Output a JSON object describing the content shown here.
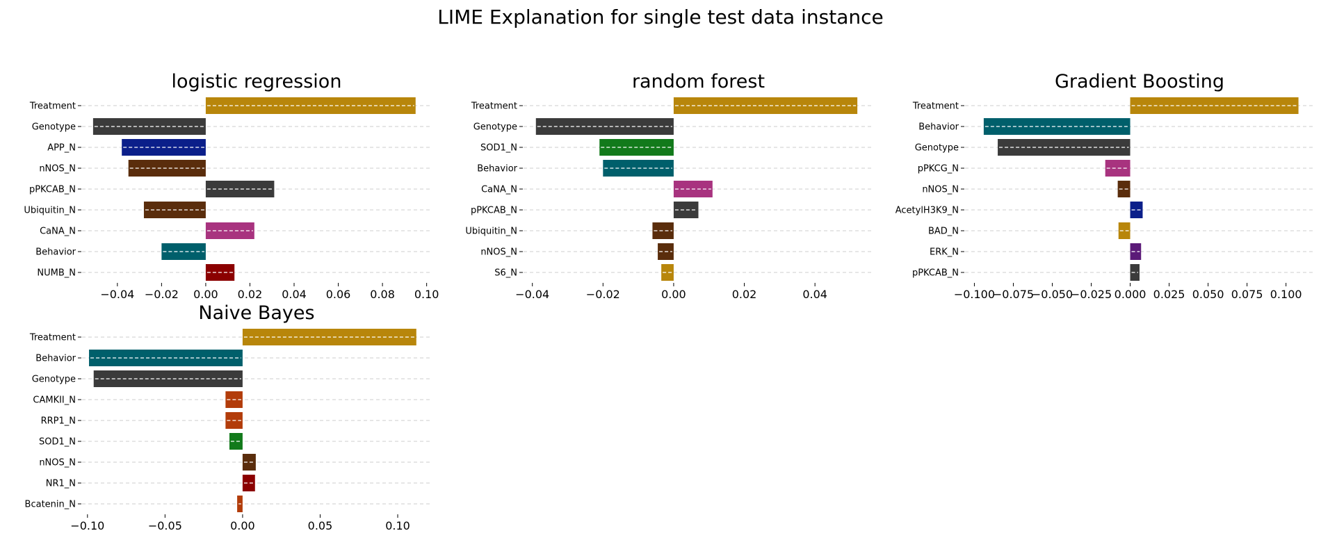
{
  "figure_title": "LIME Explanation for single test data instance",
  "colors": {
    "gold": "#b8860b",
    "dark_gray": "#3b3b3b",
    "navy": "#0b1f8a",
    "brown": "#5a2d0c",
    "magenta": "#a8337f",
    "teal": "#005f6b",
    "dark_red": "#8b0000",
    "green": "#127a1b",
    "orange_brown": "#b23c0a",
    "purple": "#5b1a78",
    "gridline": "#cccccc"
  },
  "chart_data": [
    {
      "type": "bar",
      "orientation": "horizontal",
      "title": "logistic regression",
      "categories": [
        "Treatment",
        "Genotype",
        "APP_N",
        "nNOS_N",
        "pPKCAB_N",
        "Ubiquitin_N",
        "CaNA_N",
        "Behavior",
        "NUMB_N"
      ],
      "values": [
        0.095,
        -0.051,
        -0.038,
        -0.035,
        0.031,
        -0.028,
        0.022,
        -0.02,
        0.013
      ],
      "bar_colors": [
        "gold",
        "dark_gray",
        "navy",
        "brown",
        "dark_gray",
        "brown",
        "magenta",
        "teal",
        "dark_red"
      ],
      "xlim": [
        -0.056,
        0.102
      ],
      "xticks": [
        -0.04,
        -0.02,
        0.0,
        0.02,
        0.04,
        0.06,
        0.08,
        0.1
      ],
      "xtick_labels": [
        "−0.04",
        "−0.02",
        "0.00",
        "0.02",
        "0.04",
        "0.06",
        "0.08",
        "0.10"
      ],
      "grid": "horizontal dashed"
    },
    {
      "type": "bar",
      "orientation": "horizontal",
      "title": "random forest",
      "categories": [
        "Treatment",
        "Genotype",
        "SOD1_N",
        "Behavior",
        "CaNA_N",
        "pPKCAB_N",
        "Ubiquitin_N",
        "nNOS_N",
        "S6_N"
      ],
      "values": [
        0.052,
        -0.039,
        -0.021,
        -0.02,
        0.011,
        0.007,
        -0.006,
        -0.0045,
        -0.0035
      ],
      "bar_colors": [
        "gold",
        "dark_gray",
        "green",
        "teal",
        "magenta",
        "dark_gray",
        "brown",
        "brown",
        "gold"
      ],
      "xlim": [
        -0.0425,
        0.0565
      ],
      "xticks": [
        -0.04,
        -0.02,
        0.0,
        0.02,
        0.04
      ],
      "xtick_labels": [
        "−0.04",
        "−0.02",
        "0.00",
        "0.02",
        "0.04"
      ],
      "grid": "horizontal dashed"
    },
    {
      "type": "bar",
      "orientation": "horizontal",
      "title": "Gradient Boosting",
      "categories": [
        "Treatment",
        "Behavior",
        "Genotype",
        "pPKCG_N",
        "nNOS_N",
        "AcetylH3K9_N",
        "BAD_N",
        "ERK_N",
        "pPKCAB_N"
      ],
      "values": [
        0.108,
        -0.094,
        -0.085,
        -0.016,
        -0.008,
        0.008,
        -0.0075,
        0.007,
        0.006
      ],
      "bar_colors": [
        "gold",
        "teal",
        "dark_gray",
        "magenta",
        "brown",
        "navy",
        "gold",
        "purple",
        "dark_gray"
      ],
      "xlim": [
        -0.106,
        0.118
      ],
      "xticks": [
        -0.1,
        -0.075,
        -0.05,
        -0.025,
        0.0,
        0.025,
        0.05,
        0.075,
        0.1
      ],
      "xtick_labels": [
        "−0.100",
        "−0.075",
        "−0.050",
        "−0.025",
        "0.000",
        "0.025",
        "0.050",
        "0.075",
        "0.100"
      ],
      "grid": "horizontal dashed"
    },
    {
      "type": "bar",
      "orientation": "horizontal",
      "title": "Naive Bayes",
      "categories": [
        "Treatment",
        "Behavior",
        "Genotype",
        "CAMKII_N",
        "RRP1_N",
        "SOD1_N",
        "nNOS_N",
        "NR1_N",
        "Bcatenin_N"
      ],
      "values": [
        0.112,
        -0.099,
        -0.096,
        -0.011,
        -0.011,
        -0.0085,
        0.0085,
        0.008,
        -0.0035
      ],
      "bar_colors": [
        "gold",
        "teal",
        "dark_gray",
        "orange_brown",
        "orange_brown",
        "green",
        "brown",
        "dark_red",
        "orange_brown"
      ],
      "xlim": [
        -0.1035,
        0.1215
      ],
      "xticks": [
        -0.1,
        -0.05,
        0.0,
        0.05,
        0.1
      ],
      "xtick_labels": [
        "−0.10",
        "−0.05",
        "0.00",
        "0.05",
        "0.10"
      ],
      "grid": "horizontal dashed"
    }
  ]
}
